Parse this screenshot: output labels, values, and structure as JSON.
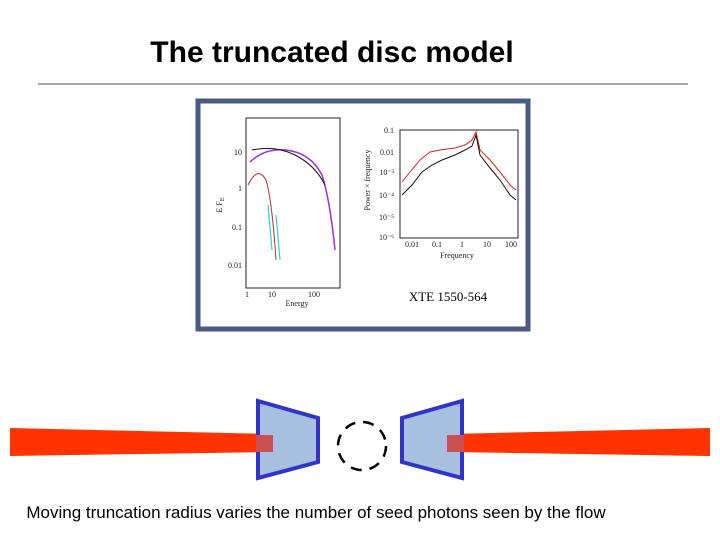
{
  "title": "The truncated disc model",
  "figure": {
    "left_plot": {
      "yticks": [
        "10",
        "1",
        "0.1",
        "0.01"
      ],
      "ylabel": "E F",
      "ylabel_sub": "E",
      "xticks": [
        "1",
        "10",
        "100"
      ],
      "xlabel": "Energy"
    },
    "right_plot": {
      "yticks": [
        "0.1",
        "0.01",
        "10⁻³",
        "10⁻⁴",
        "10⁻⁵",
        "10⁻⁶"
      ],
      "ylabel": "Power × frequency",
      "xticks": [
        "0.01",
        "0.1",
        "1",
        "10",
        "100"
      ],
      "xlabel": "Frequency"
    },
    "source_label": "XTE 1550-564"
  },
  "caption": "Moving truncation radius varies the number of seed photons seen by the flow"
}
